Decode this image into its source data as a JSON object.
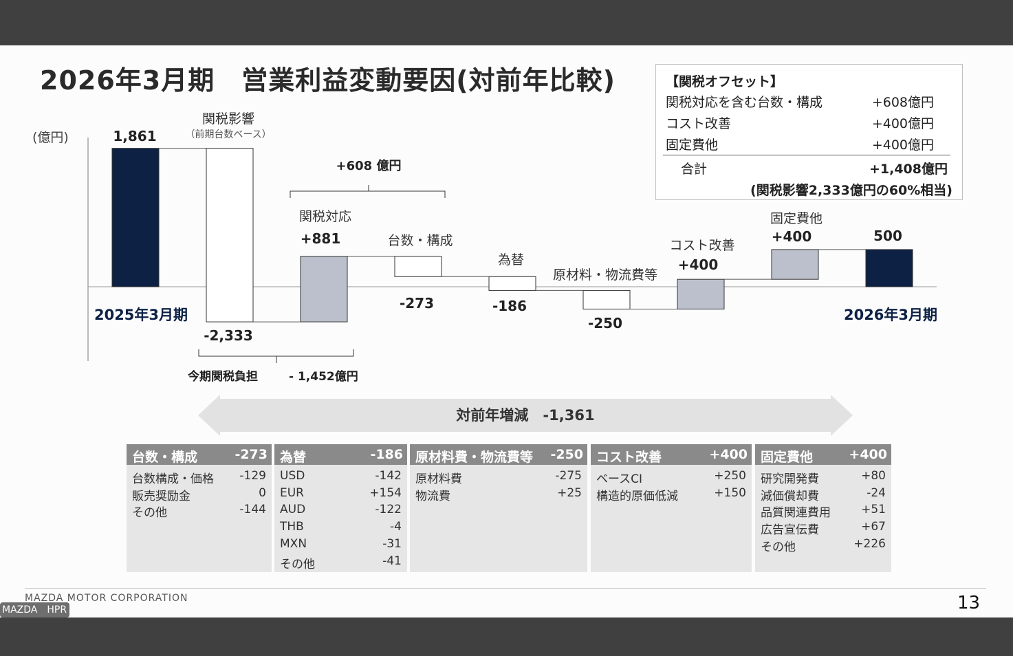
{
  "title": "2026年3月期　営業利益変動要因(対前年比較)",
  "unit_label": "(億円)",
  "chart_data": {
    "type": "waterfall",
    "unit": "億円",
    "steps": [
      {
        "id": "start",
        "label": "2025年3月期",
        "value": 1861,
        "value_label": "1,861",
        "kind": "total"
      },
      {
        "id": "tariff",
        "label": "関税影響",
        "sublabel": "（前期台数ベース）",
        "value": -2333,
        "value_label": "-2,333",
        "kind": "delta"
      },
      {
        "id": "tariff_resp",
        "label": "関税対応",
        "value": 881,
        "value_label": "+881",
        "kind": "delta"
      },
      {
        "id": "volume",
        "label": "台数・構成",
        "value": -273,
        "value_label": "-273",
        "kind": "delta"
      },
      {
        "id": "fx",
        "label": "為替",
        "value": -186,
        "value_label": "-186",
        "kind": "delta"
      },
      {
        "id": "material",
        "label": "原材料・物流費等",
        "value": -250,
        "value_label": "-250",
        "kind": "delta"
      },
      {
        "id": "cost",
        "label": "コスト改善",
        "value": 400,
        "value_label": "+400",
        "kind": "delta"
      },
      {
        "id": "fixed",
        "label": "固定費他",
        "value": 400,
        "value_label": "+400",
        "kind": "delta"
      },
      {
        "id": "end",
        "label": "2026年3月期",
        "value": 500,
        "value_label": "500",
        "kind": "total"
      }
    ],
    "colors": {
      "total": "#0d2145",
      "positive": "#bcc0cc",
      "negative": "#ffffff",
      "outline": "#333333"
    },
    "annotations": {
      "bracket_608": "+608 億円",
      "bracket_1452_label": "今期関税負担",
      "bracket_1452_value": "- 1,452億円"
    }
  },
  "offset_box": {
    "heading": "【関税オフセット】",
    "rows": [
      {
        "label": "関税対応を含む台数・構成",
        "value": "+608億円"
      },
      {
        "label": "コスト改善",
        "value": "+400億円"
      },
      {
        "label": "固定費他",
        "value": "+400億円"
      }
    ],
    "total_label": "合計",
    "total_value": "+1,408億円",
    "note": "(関税影響2,333億円の60%相当)"
  },
  "yoy_label": "対前年増減　-1,361",
  "tables": [
    {
      "name": "台数・構成",
      "total": "-273",
      "rows": [
        [
          "台数構成・価格",
          "-129"
        ],
        [
          "販売奨励金",
          "0"
        ],
        [
          "その他",
          "-144"
        ]
      ]
    },
    {
      "name": "為替",
      "total": "-186",
      "rows": [
        [
          "USD",
          "-142"
        ],
        [
          "EUR",
          "+154"
        ],
        [
          "AUD",
          "-122"
        ],
        [
          "THB",
          "-4"
        ],
        [
          "MXN",
          "-31"
        ],
        [
          "その他",
          "-41"
        ]
      ]
    },
    {
      "name": "原材料費・物流費等",
      "total": "-250",
      "rows": [
        [
          "原材料費",
          "-275"
        ],
        [
          "物流費",
          "+25"
        ]
      ]
    },
    {
      "name": "コスト改善",
      "total": "+400",
      "rows": [
        [
          "ベースCI",
          "+250"
        ],
        [
          "構造的原価低減",
          "+150"
        ]
      ]
    },
    {
      "name": "固定費他",
      "total": "+400",
      "rows": [
        [
          "研究開発費",
          "+80"
        ],
        [
          "減価償却費",
          "-24"
        ],
        [
          "品質関連費用",
          "+51"
        ],
        [
          "広告宣伝費",
          "+67"
        ],
        [
          "その他",
          "+226"
        ]
      ]
    }
  ],
  "footer": {
    "corp": "MAZDA MOTOR CORPORATION",
    "page": "13"
  },
  "badge": "MAZDA　HPR"
}
